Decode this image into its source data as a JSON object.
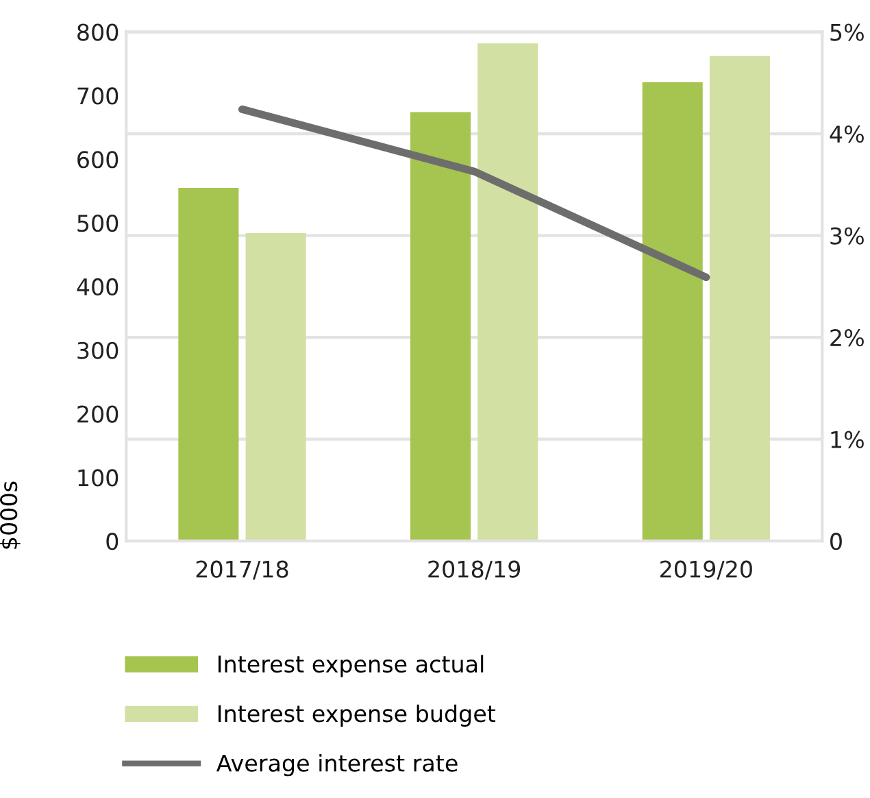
{
  "chart_data": {
    "type": "bar",
    "ylabel": "$000s",
    "categories": [
      "2017/18",
      "2018/19",
      "2019/20"
    ],
    "series": [
      {
        "name": "Interest expense actual",
        "color": "#a6c450",
        "values": [
          555,
          674,
          721
        ]
      },
      {
        "name": "Interest expense budget",
        "color": "#d2e0a4",
        "values": [
          484,
          782,
          762
        ]
      },
      {
        "name": "Average interest rate",
        "type": "line",
        "axis": "y2",
        "color": "#6d6e6c",
        "values": [
          4.24,
          3.63,
          2.59
        ]
      }
    ],
    "ylim": [
      0,
      800
    ],
    "yticks": [
      0,
      100,
      200,
      300,
      400,
      500,
      600,
      700,
      800
    ],
    "y2lim": [
      0,
      5
    ],
    "y2ticks": [
      {
        "value": 0,
        "label": "0"
      },
      {
        "value": 1,
        "label": "1%"
      },
      {
        "value": 2,
        "label": "2%"
      },
      {
        "value": 3,
        "label": "3%"
      },
      {
        "value": 4,
        "label": "4%"
      },
      {
        "value": 5,
        "label": "5%"
      }
    ],
    "grid": "y",
    "legend": "bottom",
    "line_style": "solid",
    "marker": "none"
  }
}
